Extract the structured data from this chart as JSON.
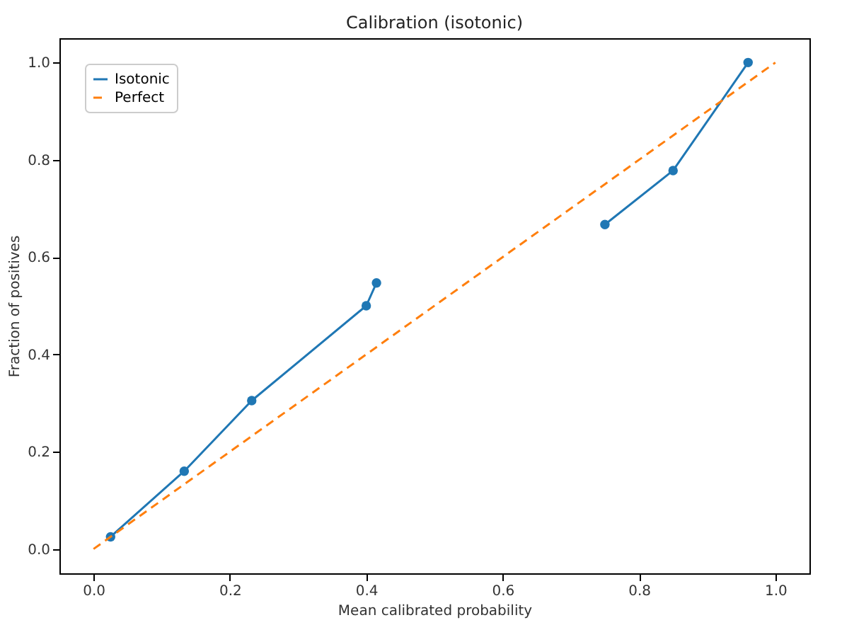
{
  "chart_data": {
    "type": "line",
    "title": "Calibration (isotonic)",
    "xlabel": "Mean calibrated probability",
    "ylabel": "Fraction of positives",
    "xlim": [
      -0.05,
      1.05
    ],
    "ylim": [
      -0.05,
      1.05
    ],
    "xticks": [
      {
        "value": 0,
        "label": "0.0"
      },
      0.2,
      0.4,
      0.6,
      0.8,
      {
        "value": 1,
        "label": "1.0"
      }
    ],
    "yticks": [
      {
        "value": 0,
        "label": "0.0"
      },
      0.2,
      0.4,
      0.6,
      0.8,
      {
        "value": 1,
        "label": "1.0"
      }
    ],
    "grid": false,
    "legend": "top left",
    "series": [
      {
        "name": "Isotonic",
        "color": "#1f77b4",
        "marker": "circle",
        "line_style": "solid",
        "x": [
          0.025,
          0.133,
          0.232,
          0.4,
          0.415,
          0.58,
          0.75,
          0.85,
          0.96
        ],
        "values": [
          0.025,
          0.16,
          0.305,
          0.5,
          0.547,
          null,
          0.667,
          0.778,
          1.0
        ]
      },
      {
        "name": "Perfect",
        "color": "#ff7f0e",
        "marker": "none",
        "line_style": "dashed",
        "x": [
          0.0,
          1.0
        ],
        "values": [
          0.0,
          1.0
        ]
      }
    ]
  }
}
